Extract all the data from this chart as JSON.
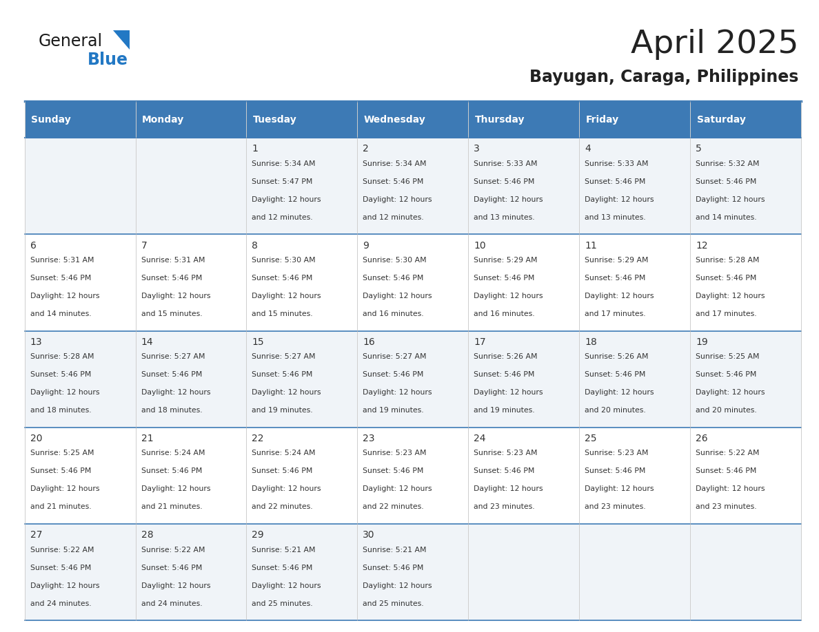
{
  "title": "April 2025",
  "subtitle": "Bayugan, Caraga, Philippines",
  "header_bg_color": "#3d7ab5",
  "header_text_color": "#ffffff",
  "day_names": [
    "Sunday",
    "Monday",
    "Tuesday",
    "Wednesday",
    "Thursday",
    "Friday",
    "Saturday"
  ],
  "title_color": "#222222",
  "subtitle_color": "#222222",
  "line_color": "#3d7ab5",
  "text_color": "#333333",
  "cell_bg_even": "#f0f4f8",
  "cell_bg_odd": "#ffffff",
  "calendar_data": [
    [
      {
        "day": "",
        "sunrise": "",
        "sunset": "",
        "daylight": ""
      },
      {
        "day": "",
        "sunrise": "",
        "sunset": "",
        "daylight": ""
      },
      {
        "day": "1",
        "sunrise": "5:34 AM",
        "sunset": "5:47 PM",
        "daylight": "12 hours and 12 minutes."
      },
      {
        "day": "2",
        "sunrise": "5:34 AM",
        "sunset": "5:46 PM",
        "daylight": "12 hours and 12 minutes."
      },
      {
        "day": "3",
        "sunrise": "5:33 AM",
        "sunset": "5:46 PM",
        "daylight": "12 hours and 13 minutes."
      },
      {
        "day": "4",
        "sunrise": "5:33 AM",
        "sunset": "5:46 PM",
        "daylight": "12 hours and 13 minutes."
      },
      {
        "day": "5",
        "sunrise": "5:32 AM",
        "sunset": "5:46 PM",
        "daylight": "12 hours and 14 minutes."
      }
    ],
    [
      {
        "day": "6",
        "sunrise": "5:31 AM",
        "sunset": "5:46 PM",
        "daylight": "12 hours and 14 minutes."
      },
      {
        "day": "7",
        "sunrise": "5:31 AM",
        "sunset": "5:46 PM",
        "daylight": "12 hours and 15 minutes."
      },
      {
        "day": "8",
        "sunrise": "5:30 AM",
        "sunset": "5:46 PM",
        "daylight": "12 hours and 15 minutes."
      },
      {
        "day": "9",
        "sunrise": "5:30 AM",
        "sunset": "5:46 PM",
        "daylight": "12 hours and 16 minutes."
      },
      {
        "day": "10",
        "sunrise": "5:29 AM",
        "sunset": "5:46 PM",
        "daylight": "12 hours and 16 minutes."
      },
      {
        "day": "11",
        "sunrise": "5:29 AM",
        "sunset": "5:46 PM",
        "daylight": "12 hours and 17 minutes."
      },
      {
        "day": "12",
        "sunrise": "5:28 AM",
        "sunset": "5:46 PM",
        "daylight": "12 hours and 17 minutes."
      }
    ],
    [
      {
        "day": "13",
        "sunrise": "5:28 AM",
        "sunset": "5:46 PM",
        "daylight": "12 hours and 18 minutes."
      },
      {
        "day": "14",
        "sunrise": "5:27 AM",
        "sunset": "5:46 PM",
        "daylight": "12 hours and 18 minutes."
      },
      {
        "day": "15",
        "sunrise": "5:27 AM",
        "sunset": "5:46 PM",
        "daylight": "12 hours and 19 minutes."
      },
      {
        "day": "16",
        "sunrise": "5:27 AM",
        "sunset": "5:46 PM",
        "daylight": "12 hours and 19 minutes."
      },
      {
        "day": "17",
        "sunrise": "5:26 AM",
        "sunset": "5:46 PM",
        "daylight": "12 hours and 19 minutes."
      },
      {
        "day": "18",
        "sunrise": "5:26 AM",
        "sunset": "5:46 PM",
        "daylight": "12 hours and 20 minutes."
      },
      {
        "day": "19",
        "sunrise": "5:25 AM",
        "sunset": "5:46 PM",
        "daylight": "12 hours and 20 minutes."
      }
    ],
    [
      {
        "day": "20",
        "sunrise": "5:25 AM",
        "sunset": "5:46 PM",
        "daylight": "12 hours and 21 minutes."
      },
      {
        "day": "21",
        "sunrise": "5:24 AM",
        "sunset": "5:46 PM",
        "daylight": "12 hours and 21 minutes."
      },
      {
        "day": "22",
        "sunrise": "5:24 AM",
        "sunset": "5:46 PM",
        "daylight": "12 hours and 22 minutes."
      },
      {
        "day": "23",
        "sunrise": "5:23 AM",
        "sunset": "5:46 PM",
        "daylight": "12 hours and 22 minutes."
      },
      {
        "day": "24",
        "sunrise": "5:23 AM",
        "sunset": "5:46 PM",
        "daylight": "12 hours and 23 minutes."
      },
      {
        "day": "25",
        "sunrise": "5:23 AM",
        "sunset": "5:46 PM",
        "daylight": "12 hours and 23 minutes."
      },
      {
        "day": "26",
        "sunrise": "5:22 AM",
        "sunset": "5:46 PM",
        "daylight": "12 hours and 23 minutes."
      }
    ],
    [
      {
        "day": "27",
        "sunrise": "5:22 AM",
        "sunset": "5:46 PM",
        "daylight": "12 hours and 24 minutes."
      },
      {
        "day": "28",
        "sunrise": "5:22 AM",
        "sunset": "5:46 PM",
        "daylight": "12 hours and 24 minutes."
      },
      {
        "day": "29",
        "sunrise": "5:21 AM",
        "sunset": "5:46 PM",
        "daylight": "12 hours and 25 minutes."
      },
      {
        "day": "30",
        "sunrise": "5:21 AM",
        "sunset": "5:46 PM",
        "daylight": "12 hours and 25 minutes."
      },
      {
        "day": "",
        "sunrise": "",
        "sunset": "",
        "daylight": ""
      },
      {
        "day": "",
        "sunrise": "",
        "sunset": "",
        "daylight": ""
      },
      {
        "day": "",
        "sunrise": "",
        "sunset": "",
        "daylight": ""
      }
    ]
  ]
}
